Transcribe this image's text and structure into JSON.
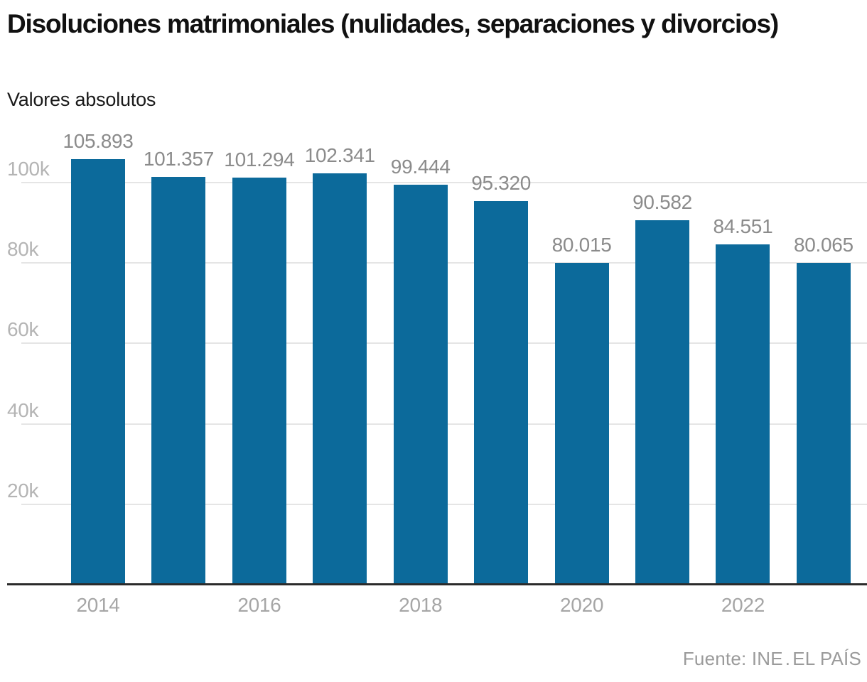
{
  "header": {
    "title": "Disoluciones matrimoniales (nulidades, separaciones y divorcios)",
    "subtitle": "Valores absolutos"
  },
  "footer": {
    "source": "Fuente: INE",
    "separator": ".",
    "brand": "EL PAÍS"
  },
  "colors": {
    "bar": "#0c6a9b",
    "value_label": "#8b8b8b",
    "y_tick_label": "#b4b4b4",
    "x_tick_label": "#a6a6a6",
    "gridline": "#e5e5e5",
    "baseline": "#2b2b2b",
    "title": "#111111",
    "subtitle": "#1a1a1a",
    "source": "#9b9b9b",
    "background": "#ffffff"
  },
  "chart_data": {
    "type": "bar",
    "title": "Disoluciones matrimoniales (nulidades, separaciones y divorcios)",
    "subtitle": "Valores absolutos",
    "xlabel": "",
    "ylabel": "",
    "categories": [
      "2014",
      "2015",
      "2016",
      "2017",
      "2018",
      "2019",
      "2020",
      "2021",
      "2022",
      "2023"
    ],
    "values": [
      105893,
      101357,
      101294,
      102341,
      99444,
      95320,
      80015,
      90582,
      84551,
      80065
    ],
    "value_labels": [
      "105.893",
      "101.357",
      "101.294",
      "102.341",
      "99.444",
      "95.320",
      "80.015",
      "90.582",
      "84.551",
      "80.065"
    ],
    "y_ticks": [
      {
        "value": 20000,
        "label": "20k"
      },
      {
        "value": 40000,
        "label": "40k"
      },
      {
        "value": 60000,
        "label": "60k"
      },
      {
        "value": 80000,
        "label": "80k"
      },
      {
        "value": 100000,
        "label": "100k"
      }
    ],
    "x_ticks": [
      {
        "index": 0,
        "label": "2014"
      },
      {
        "index": 2,
        "label": "2016"
      },
      {
        "index": 4,
        "label": "2018"
      },
      {
        "index": 6,
        "label": "2020"
      },
      {
        "index": 8,
        "label": "2022"
      }
    ],
    "ylim": [
      0,
      112000
    ],
    "grid": "horizontal",
    "legend": "none",
    "source": "Fuente: INE. EL PAÍS"
  }
}
